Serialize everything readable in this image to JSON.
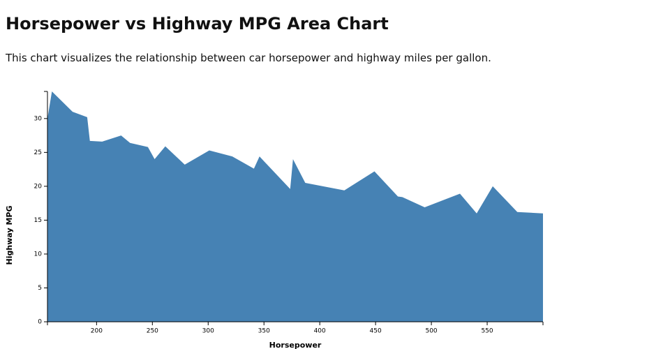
{
  "chart_data": {
    "type": "area",
    "title": "Horsepower vs Highway MPG Area Chart",
    "subtitle": "This chart visualizes the relationship between car horsepower and highway miles per gallon.",
    "x_label": "Horsepower",
    "y_label": "Highway MPG",
    "x": [
      156,
      160,
      178.5,
      191.6,
      194,
      205,
      222,
      230,
      246,
      252,
      261.6,
      279,
      301,
      321.6,
      341,
      346,
      373.5,
      376,
      387,
      422,
      449,
      470,
      474,
      494,
      525.6,
      540.6,
      555,
      577,
      600
    ],
    "values": [
      30,
      34,
      31,
      30.2,
      26.7,
      26.6,
      27.5,
      26.4,
      25.8,
      24,
      25.9,
      23.2,
      25.3,
      24.4,
      22.6,
      24.4,
      19.6,
      24,
      20.5,
      19.4,
      22.2,
      18.5,
      18.4,
      16.9,
      18.9,
      16,
      20,
      16.2,
      16
    ],
    "color": "#4682b4",
    "xlim": [
      156,
      600
    ],
    "ylim": [
      0,
      34
    ],
    "xticks": [
      200,
      250,
      300,
      350,
      400,
      450,
      500,
      550
    ],
    "yticks": [
      0,
      5,
      10,
      15,
      20,
      25,
      30
    ],
    "grid": false
  }
}
